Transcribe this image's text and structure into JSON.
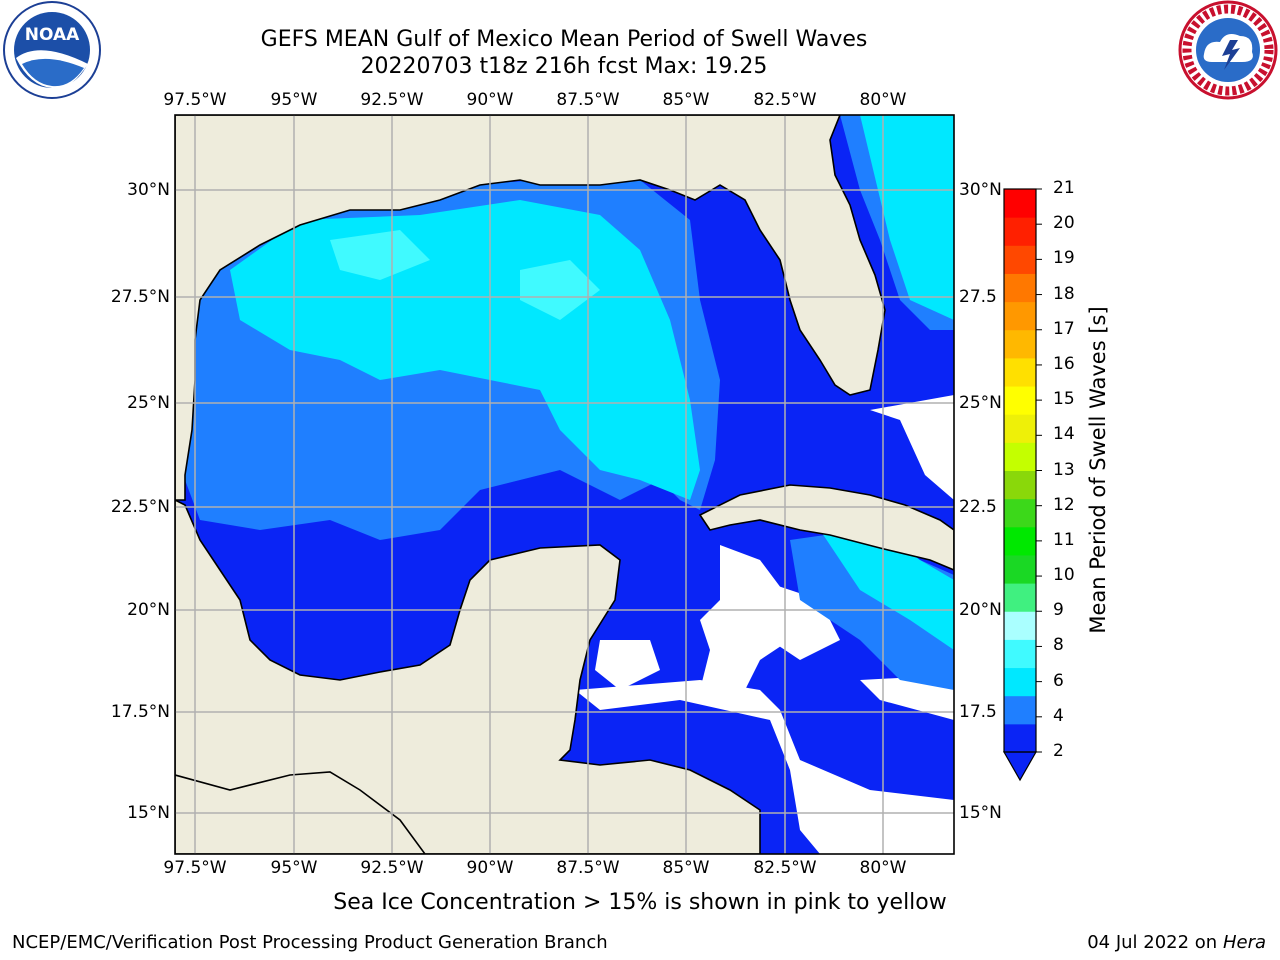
{
  "header": {
    "title_line1": "GEFS MEAN Gulf of Mexico Mean Period of Swell Waves",
    "title_line2": "20220703 t18z 216h fcst   Max: 19.25"
  },
  "map": {
    "lon_ticks": [
      "97.5°W",
      "95°W",
      "92.5°W",
      "90°W",
      "87.5°W",
      "85°W",
      "82.5°W",
      "80°W"
    ],
    "lat_ticks_left": [
      "30°N",
      "27.5°N",
      "25°N",
      "22.5°N",
      "20°N",
      "17.5°N",
      "15°N"
    ],
    "lat_ticks_right": [
      "30°N",
      "27.5",
      "25°N",
      "22.5",
      "20°N",
      "17.5",
      "15°N"
    ],
    "colors": {
      "land": "#eeecdc",
      "ocean_missing": "#ffffff",
      "grid": "#b0b0b0"
    }
  },
  "colorbar": {
    "title": "Mean Period of Swell Waves [s]",
    "ticks": [
      "2",
      "4",
      "6",
      "8",
      "9",
      "10",
      "11",
      "12",
      "13",
      "14",
      "15",
      "16",
      "17",
      "18",
      "19",
      "20",
      "21"
    ],
    "colors": [
      "#0a24f5",
      "#1f7fff",
      "#00e8ff",
      "#40faff",
      "#aaffff",
      "#40f080",
      "#1ad824",
      "#00e800",
      "#3cd81a",
      "#8ad80a",
      "#c4ff00",
      "#eef008",
      "#ffff00",
      "#ffe000",
      "#ffb800",
      "#ff9800",
      "#ff7800",
      "#ff4800",
      "#ff2000",
      "#ff0000"
    ],
    "extend": "min"
  },
  "footer": {
    "note": "Sea Ice Concentration > 15% is shown in pink to yellow",
    "credit_left": "NCEP/EMC/Verification Post Processing Product Generation Branch",
    "credit_right_date": "04 Jul 2022 on ",
    "credit_right_host": "Hera"
  },
  "logos": {
    "left": "NOAA",
    "right": "NATIONAL WEATHER SERVICE"
  }
}
